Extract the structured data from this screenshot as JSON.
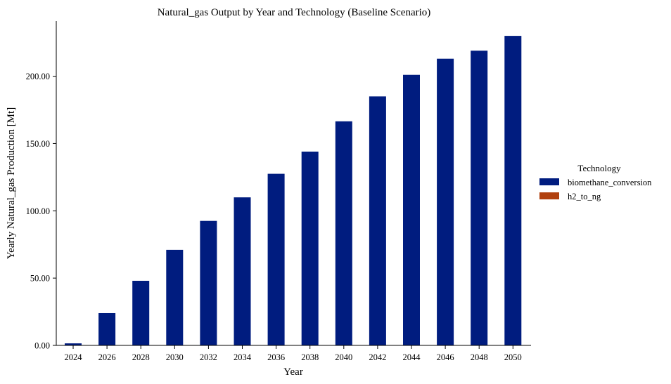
{
  "chart_data": {
    "type": "bar",
    "stacked": true,
    "title": "Natural_gas Output by Year and Technology (Baseline Scenario)",
    "xlabel": "Year",
    "ylabel": "Yearly Natural_gas Production [Mt]",
    "categories": [
      "2024",
      "2026",
      "2028",
      "2030",
      "2032",
      "2034",
      "2036",
      "2038",
      "2040",
      "2042",
      "2044",
      "2046",
      "2048",
      "2050"
    ],
    "series": [
      {
        "name": "biomethane_conversion",
        "color": "#001c7f",
        "values": [
          1.5,
          24,
          48,
          71,
          92.5,
          110,
          127.5,
          144,
          166.5,
          185,
          201,
          213,
          219,
          230
        ]
      },
      {
        "name": "h2_to_ng",
        "color": "#b1400d",
        "values": [
          0,
          0,
          0,
          0,
          0,
          0,
          0,
          0,
          0,
          0,
          0,
          0,
          0,
          0
        ]
      }
    ],
    "ylim": [
      0,
      241
    ],
    "yticks": [
      0,
      50,
      100,
      150,
      200
    ],
    "ytick_labels": [
      "0.00",
      "50.00",
      "100.00",
      "150.00",
      "200.00"
    ],
    "legend": {
      "title": "Technology",
      "position": "right"
    },
    "grid": false
  }
}
